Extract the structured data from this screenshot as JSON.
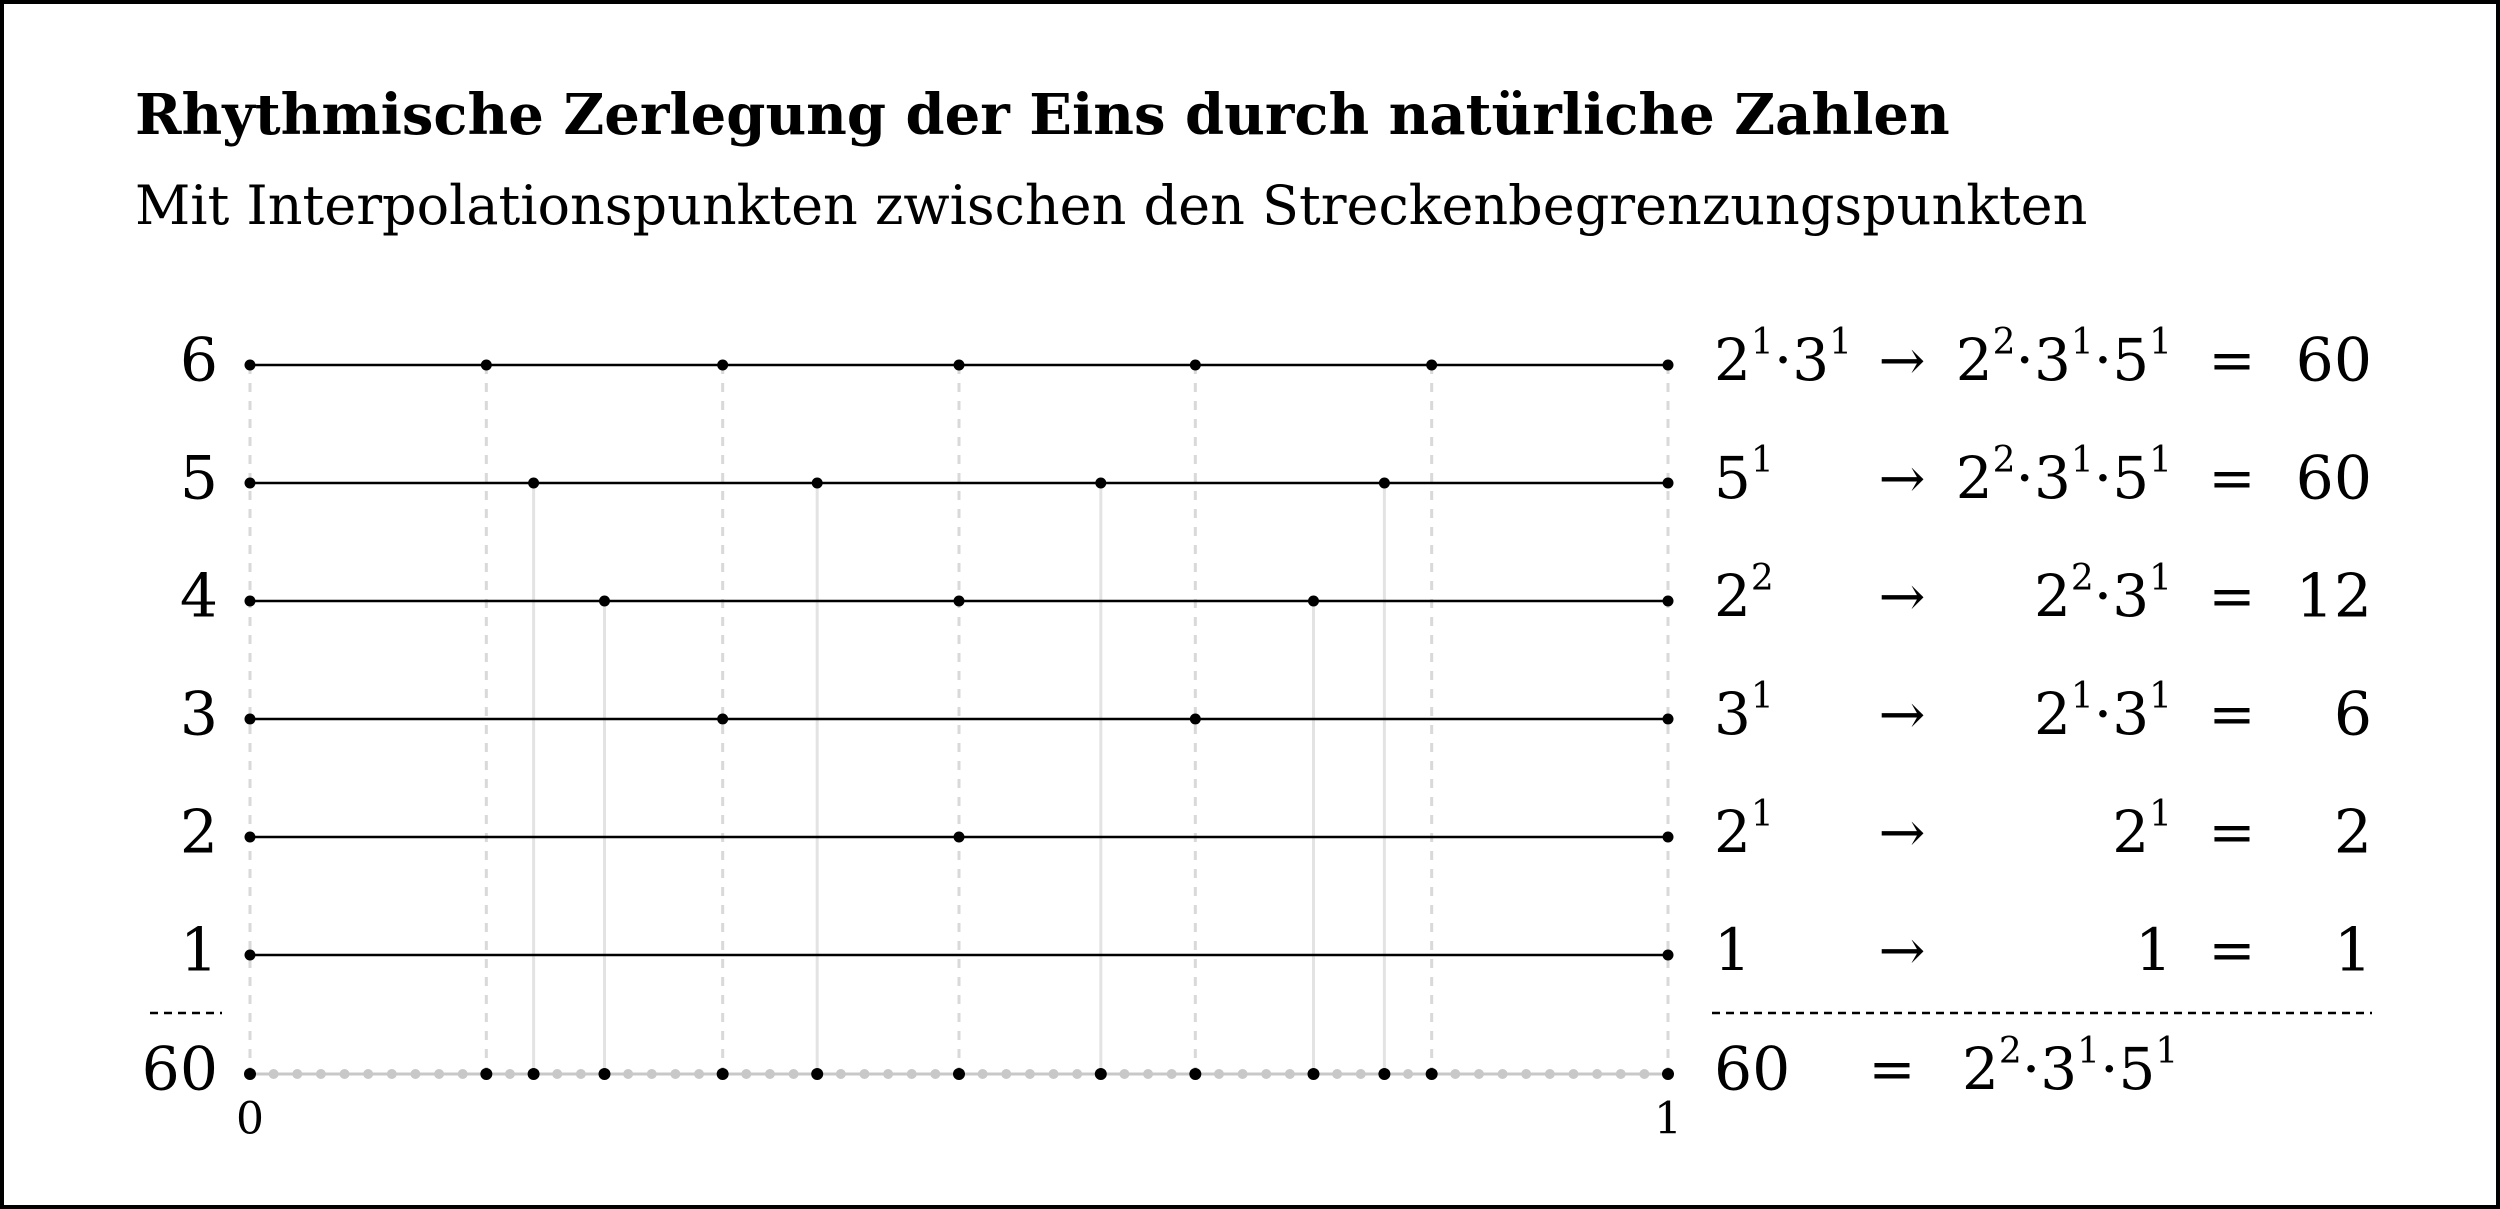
{
  "title": "Rhythmische Zerlegung der Eins durch natürliche Zahlen",
  "subtitle": "Mit Interpolationspunkten zwischen den Streckenbegrenzungspunkten",
  "axis": {
    "start_label": "0",
    "end_label": "1"
  },
  "rows": [
    {
      "n": 6,
      "label": "6",
      "factors": [
        [
          "2",
          "1"
        ],
        [
          "3",
          "1"
        ]
      ],
      "arrow": "→",
      "result": [
        [
          "2",
          "2"
        ],
        [
          "3",
          "1"
        ],
        [
          "5",
          "1"
        ]
      ],
      "eq": "=",
      "value": "60"
    },
    {
      "n": 5,
      "label": "5",
      "factors": [
        [
          "5",
          "1"
        ]
      ],
      "arrow": "→",
      "result": [
        [
          "2",
          "2"
        ],
        [
          "3",
          "1"
        ],
        [
          "5",
          "1"
        ]
      ],
      "eq": "=",
      "value": "60"
    },
    {
      "n": 4,
      "label": "4",
      "factors": [
        [
          "2",
          "2"
        ]
      ],
      "arrow": "→",
      "result": [
        [
          "2",
          "2"
        ],
        [
          "3",
          "1"
        ]
      ],
      "eq": "=",
      "value": "12"
    },
    {
      "n": 3,
      "label": "3",
      "factors": [
        [
          "3",
          "1"
        ]
      ],
      "arrow": "→",
      "result": [
        [
          "2",
          "1"
        ],
        [
          "3",
          "1"
        ]
      ],
      "eq": "=",
      "value": "6"
    },
    {
      "n": 2,
      "label": "2",
      "factors": [
        [
          "2",
          "1"
        ]
      ],
      "arrow": "→",
      "result": [
        [
          "2",
          "1"
        ]
      ],
      "eq": "=",
      "value": "2"
    },
    {
      "n": 1,
      "label": "1",
      "factors": [
        [
          "1",
          ""
        ]
      ],
      "arrow": "→",
      "result": [
        [
          "1",
          ""
        ]
      ],
      "eq": "=",
      "value": "1"
    }
  ],
  "summary": {
    "n": 60,
    "label": "60",
    "left": "60",
    "eq": "=",
    "result": [
      [
        "2",
        "2"
      ],
      [
        "3",
        "1"
      ],
      [
        "5",
        "1"
      ]
    ]
  },
  "colors": {
    "line": "#000000",
    "grid_dashed": "#d9d9d9",
    "grid_solid": "#e3e3e3",
    "interp_dot": "#c8c8c8",
    "frame": "#000000"
  }
}
